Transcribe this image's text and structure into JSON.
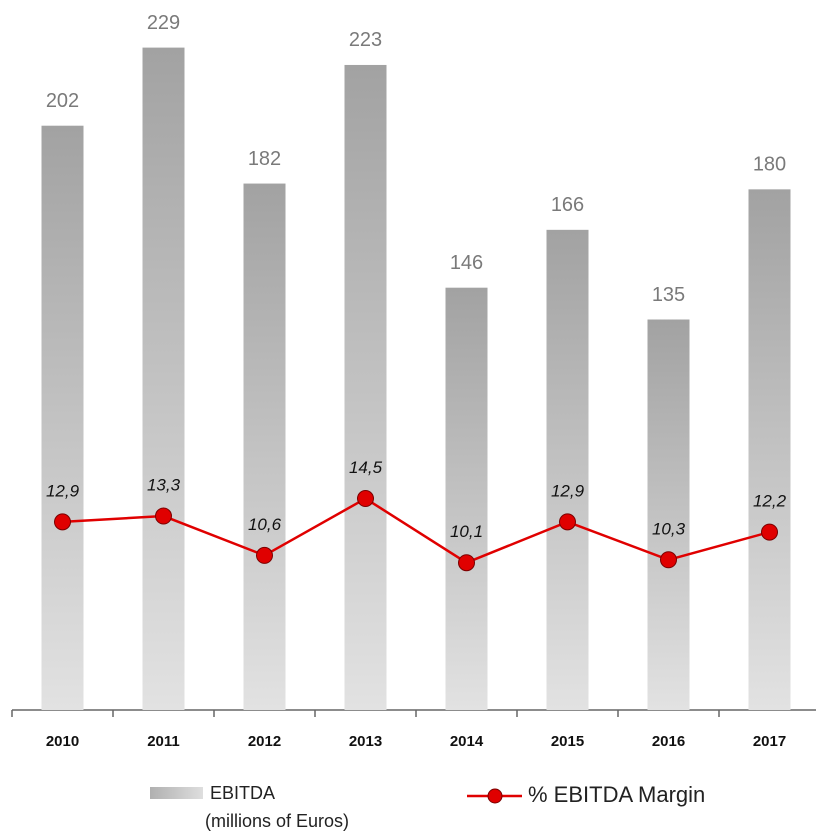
{
  "chart_data": {
    "type": "bar_line",
    "categories": [
      "2010",
      "2011",
      "2012",
      "2013",
      "2014",
      "2015",
      "2016",
      "2017"
    ],
    "series": [
      {
        "name": "EBITDA",
        "type": "bar",
        "color": "#a8a8a8",
        "values": [
          202,
          229,
          182,
          223,
          146,
          166,
          135,
          180
        ]
      },
      {
        "name": "% EBITDA Margin",
        "type": "line",
        "axis": "y2",
        "color": "#e00000",
        "values": [
          12.9,
          13.3,
          10.6,
          14.5,
          10.1,
          12.9,
          10.3,
          12.2
        ],
        "value_labels": [
          "12,9",
          "13,3",
          "10,6",
          "14,5",
          "10,1",
          "12,9",
          "10,3",
          "12,2"
        ]
      }
    ],
    "legend_note": "(millions of Euros)",
    "ylim": [
      0,
      242
    ],
    "y2lim": [
      0,
      48
    ],
    "grid": false
  }
}
